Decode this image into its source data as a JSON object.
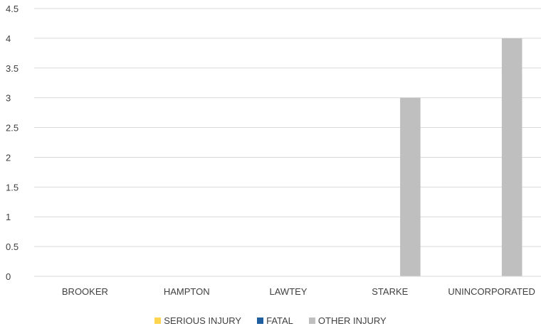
{
  "chart_data": {
    "type": "bar",
    "categories": [
      "BROOKER",
      "HAMPTON",
      "LAWTEY",
      "STARKE",
      "UNINCORPORATED"
    ],
    "series": [
      {
        "name": "SERIOUS INJURY",
        "color": "#FFD54F",
        "values": [
          0,
          0,
          0,
          0,
          0
        ]
      },
      {
        "name": "FATAL",
        "color": "#1F5FA0",
        "values": [
          0,
          0,
          0,
          0,
          0
        ]
      },
      {
        "name": "OTHER INJURY",
        "color": "#BFBFBF",
        "values": [
          0,
          0,
          0,
          3,
          4
        ]
      }
    ],
    "y_ticks": [
      "0",
      "0.5",
      "1",
      "1.5",
      "2",
      "2.5",
      "3",
      "3.5",
      "4",
      "4.5"
    ],
    "ylim": [
      0,
      4.5
    ],
    "grid": true,
    "legend_position": "bottom",
    "title": "",
    "xlabel": "",
    "ylabel": ""
  }
}
